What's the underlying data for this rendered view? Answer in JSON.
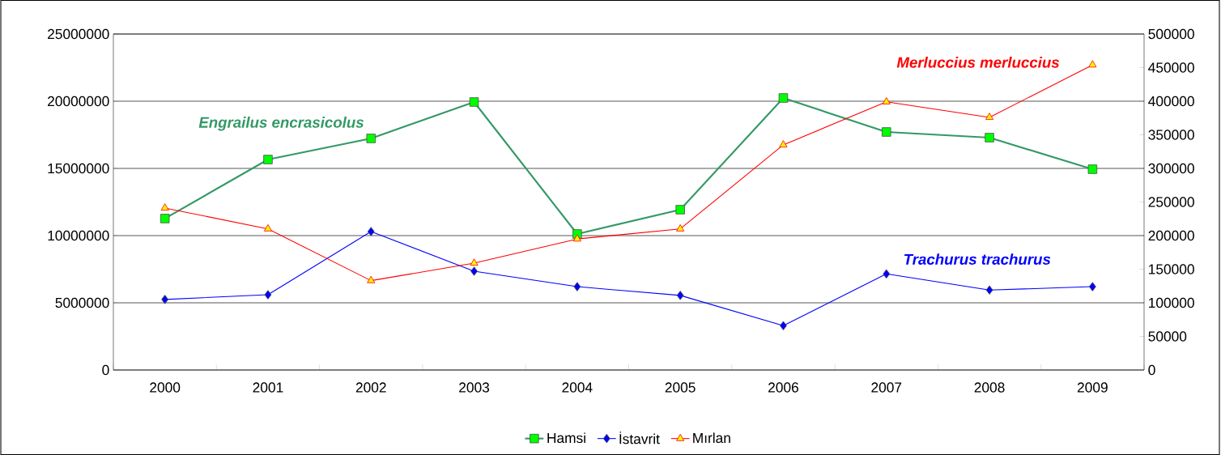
{
  "chart_data": {
    "type": "line",
    "categories": [
      "2000",
      "2001",
      "2002",
      "2003",
      "2004",
      "2005",
      "2006",
      "2007",
      "2008",
      "2009"
    ],
    "series": [
      {
        "name": "Hamsi",
        "color": "#339966",
        "marker": "square",
        "values": [
          11270000,
          15660000,
          17230000,
          19940000,
          10120000,
          11930000,
          20240000,
          17710000,
          17290000,
          14940000
        ]
      },
      {
        "name": "İstavrit",
        "color": "#0000ff",
        "marker": "diamond",
        "axis": "y2",
        "values": [
          105000,
          112000,
          206000,
          147000,
          124000,
          111000,
          66000,
          143000,
          119000,
          124000
        ]
      },
      {
        "name": "Mırlan",
        "color": "#ff0000",
        "marker": "triangle",
        "axis": "y2",
        "values": [
          241000,
          210000,
          133000,
          159000,
          195000,
          210000,
          335000,
          399000,
          376000,
          454000
        ]
      }
    ],
    "ylim": [
      0,
      25000000
    ],
    "yticks": [
      0,
      5000000,
      10000000,
      15000000,
      20000000,
      25000000
    ],
    "y2lim": [
      0,
      500000
    ],
    "y2ticks": [
      0,
      50000,
      100000,
      150000,
      200000,
      250000,
      300000,
      350000,
      400000,
      450000,
      500000
    ],
    "annotations": [
      "Engrailus encrasicolus",
      "Trachurus trachurus",
      "Merluccius merluccius"
    ],
    "grid": "y",
    "legend": "bottom"
  }
}
